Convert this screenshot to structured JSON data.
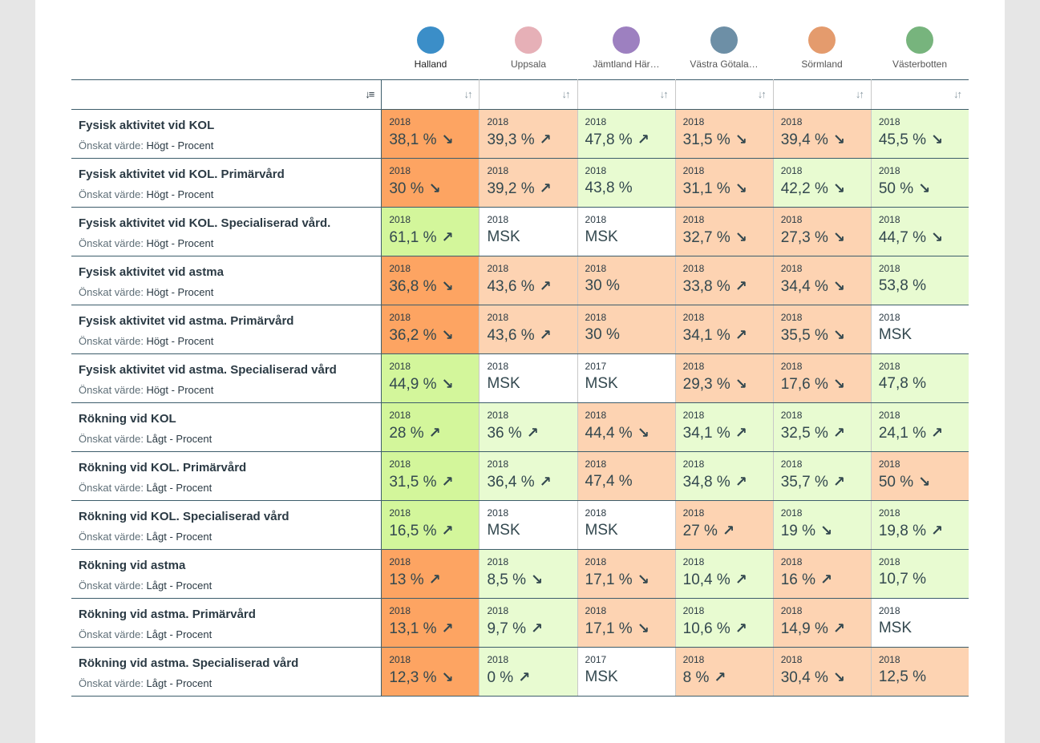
{
  "regions": [
    {
      "name": "Halland",
      "color": "#3b8ec8",
      "active": true
    },
    {
      "name": "Uppsala",
      "color": "#e6b0b7",
      "active": false
    },
    {
      "name": "Jämtland Här…",
      "color": "#9d80c0",
      "active": false
    },
    {
      "name": "Västra Götala…",
      "color": "#6d8fa6",
      "active": false
    },
    {
      "name": "Sörmland",
      "color": "#e49b6d",
      "active": false
    },
    {
      "name": "Västerbotten",
      "color": "#77b47d",
      "active": false
    }
  ],
  "sort_icons": {
    "label": "↓≡",
    "col": "↓↑"
  },
  "desired_label": "Önskat värde:",
  "indicators": [
    {
      "name": "Fysisk aktivitet vid KOL",
      "desired": "Högt - Procent",
      "cells": [
        {
          "year": "2018",
          "value": "38,1 %",
          "arrow": "↘",
          "color": "c-dorange"
        },
        {
          "year": "2018",
          "value": "39,3 %",
          "arrow": "↗",
          "color": "c-lorange"
        },
        {
          "year": "2018",
          "value": "47,8 %",
          "arrow": "↗",
          "color": "c-lgreen"
        },
        {
          "year": "2018",
          "value": "31,5 %",
          "arrow": "↘",
          "color": "c-lorange"
        },
        {
          "year": "2018",
          "value": "39,4 %",
          "arrow": "↘",
          "color": "c-lorange"
        },
        {
          "year": "2018",
          "value": "45,5 %",
          "arrow": "↘",
          "color": "c-lgreen"
        }
      ]
    },
    {
      "name": "Fysisk aktivitet vid KOL. Primärvård",
      "desired": "Högt - Procent",
      "cells": [
        {
          "year": "2018",
          "value": "30 %",
          "arrow": "↘",
          "color": "c-dorange"
        },
        {
          "year": "2018",
          "value": "39,2 %",
          "arrow": "↗",
          "color": "c-lorange"
        },
        {
          "year": "2018",
          "value": "43,8 %",
          "arrow": "",
          "color": "c-lgreen"
        },
        {
          "year": "2018",
          "value": "31,1 %",
          "arrow": "↘",
          "color": "c-lorange"
        },
        {
          "year": "2018",
          "value": "42,2 %",
          "arrow": "↘",
          "color": "c-lgreen"
        },
        {
          "year": "2018",
          "value": "50 %",
          "arrow": "↘",
          "color": "c-lgreen"
        }
      ]
    },
    {
      "name": "Fysisk aktivitet vid KOL. Specialiserad vård.",
      "desired": "Högt - Procent",
      "cells": [
        {
          "year": "2018",
          "value": "61,1 %",
          "arrow": "↗",
          "color": "c-bgreen"
        },
        {
          "year": "2018",
          "value": "MSK",
          "arrow": "",
          "color": "c-white"
        },
        {
          "year": "2018",
          "value": "MSK",
          "arrow": "",
          "color": "c-white"
        },
        {
          "year": "2018",
          "value": "32,7 %",
          "arrow": "↘",
          "color": "c-lorange"
        },
        {
          "year": "2018",
          "value": "27,3 %",
          "arrow": "↘",
          "color": "c-lorange"
        },
        {
          "year": "2018",
          "value": "44,7 %",
          "arrow": "↘",
          "color": "c-lgreen"
        }
      ]
    },
    {
      "name": "Fysisk aktivitet vid astma",
      "desired": "Högt - Procent",
      "cells": [
        {
          "year": "2018",
          "value": "36,8 %",
          "arrow": "↘",
          "color": "c-dorange"
        },
        {
          "year": "2018",
          "value": "43,6 %",
          "arrow": "↗",
          "color": "c-lorange"
        },
        {
          "year": "2018",
          "value": "30 %",
          "arrow": "",
          "color": "c-lorange"
        },
        {
          "year": "2018",
          "value": "33,8 %",
          "arrow": "↗",
          "color": "c-lorange"
        },
        {
          "year": "2018",
          "value": "34,4 %",
          "arrow": "↘",
          "color": "c-lorange"
        },
        {
          "year": "2018",
          "value": "53,8 %",
          "arrow": "",
          "color": "c-lgreen"
        }
      ]
    },
    {
      "name": "Fysisk aktivitet vid astma. Primärvård",
      "desired": "Högt - Procent",
      "cells": [
        {
          "year": "2018",
          "value": "36,2 %",
          "arrow": "↘",
          "color": "c-dorange"
        },
        {
          "year": "2018",
          "value": "43,6 %",
          "arrow": "↗",
          "color": "c-lorange"
        },
        {
          "year": "2018",
          "value": "30 %",
          "arrow": "",
          "color": "c-lorange"
        },
        {
          "year": "2018",
          "value": "34,1 %",
          "arrow": "↗",
          "color": "c-lorange"
        },
        {
          "year": "2018",
          "value": "35,5 %",
          "arrow": "↘",
          "color": "c-lorange"
        },
        {
          "year": "2018",
          "value": "MSK",
          "arrow": "",
          "color": "c-white"
        }
      ]
    },
    {
      "name": "Fysisk aktivitet vid astma. Specialiserad vård",
      "desired": "Högt - Procent",
      "cells": [
        {
          "year": "2018",
          "value": "44,9 %",
          "arrow": "↘",
          "color": "c-bgreen"
        },
        {
          "year": "2018",
          "value": "MSK",
          "arrow": "",
          "color": "c-white"
        },
        {
          "year": "2017",
          "value": "MSK",
          "arrow": "",
          "color": "c-white"
        },
        {
          "year": "2018",
          "value": "29,3 %",
          "arrow": "↘",
          "color": "c-lorange"
        },
        {
          "year": "2018",
          "value": "17,6 %",
          "arrow": "↘",
          "color": "c-lorange"
        },
        {
          "year": "2018",
          "value": "47,8 %",
          "arrow": "",
          "color": "c-lgreen"
        }
      ]
    },
    {
      "name": "Rökning vid KOL",
      "desired": "Lågt - Procent",
      "cells": [
        {
          "year": "2018",
          "value": "28 %",
          "arrow": "↗",
          "color": "c-bgreen"
        },
        {
          "year": "2018",
          "value": "36 %",
          "arrow": "↗",
          "color": "c-lgreen"
        },
        {
          "year": "2018",
          "value": "44,4 %",
          "arrow": "↘",
          "color": "c-lorange"
        },
        {
          "year": "2018",
          "value": "34,1 %",
          "arrow": "↗",
          "color": "c-lgreen"
        },
        {
          "year": "2018",
          "value": "32,5 %",
          "arrow": "↗",
          "color": "c-lgreen"
        },
        {
          "year": "2018",
          "value": "24,1 %",
          "arrow": "↗",
          "color": "c-lgreen"
        }
      ]
    },
    {
      "name": "Rökning vid KOL. Primärvård",
      "desired": "Lågt - Procent",
      "cells": [
        {
          "year": "2018",
          "value": "31,5 %",
          "arrow": "↗",
          "color": "c-bgreen"
        },
        {
          "year": "2018",
          "value": "36,4 %",
          "arrow": "↗",
          "color": "c-lgreen"
        },
        {
          "year": "2018",
          "value": "47,4 %",
          "arrow": "",
          "color": "c-lorange"
        },
        {
          "year": "2018",
          "value": "34,8 %",
          "arrow": "↗",
          "color": "c-lgreen"
        },
        {
          "year": "2018",
          "value": "35,7 %",
          "arrow": "↗",
          "color": "c-lgreen"
        },
        {
          "year": "2018",
          "value": "50 %",
          "arrow": "↘",
          "color": "c-lorange"
        }
      ]
    },
    {
      "name": "Rökning vid KOL. Specialiserad vård",
      "desired": "Lågt - Procent",
      "cells": [
        {
          "year": "2018",
          "value": "16,5 %",
          "arrow": "↗",
          "color": "c-bgreen"
        },
        {
          "year": "2018",
          "value": "MSK",
          "arrow": "",
          "color": "c-white"
        },
        {
          "year": "2018",
          "value": "MSK",
          "arrow": "",
          "color": "c-white"
        },
        {
          "year": "2018",
          "value": "27 %",
          "arrow": "↗",
          "color": "c-lorange"
        },
        {
          "year": "2018",
          "value": "19 %",
          "arrow": "↘",
          "color": "c-lgreen"
        },
        {
          "year": "2018",
          "value": "19,8 %",
          "arrow": "↗",
          "color": "c-lgreen"
        }
      ]
    },
    {
      "name": "Rökning vid astma",
      "desired": "Lågt - Procent",
      "cells": [
        {
          "year": "2018",
          "value": "13 %",
          "arrow": "↗",
          "color": "c-dorange"
        },
        {
          "year": "2018",
          "value": "8,5 %",
          "arrow": "↘",
          "color": "c-lgreen"
        },
        {
          "year": "2018",
          "value": "17,1 %",
          "arrow": "↘",
          "color": "c-lorange"
        },
        {
          "year": "2018",
          "value": "10,4 %",
          "arrow": "↗",
          "color": "c-lgreen"
        },
        {
          "year": "2018",
          "value": "16 %",
          "arrow": "↗",
          "color": "c-lorange"
        },
        {
          "year": "2018",
          "value": "10,7 %",
          "arrow": "",
          "color": "c-lgreen"
        }
      ]
    },
    {
      "name": "Rökning vid astma. Primärvård",
      "desired": "Lågt - Procent",
      "cells": [
        {
          "year": "2018",
          "value": "13,1 %",
          "arrow": "↗",
          "color": "c-dorange"
        },
        {
          "year": "2018",
          "value": "9,7 %",
          "arrow": "↗",
          "color": "c-lgreen"
        },
        {
          "year": "2018",
          "value": "17,1 %",
          "arrow": "↘",
          "color": "c-lorange"
        },
        {
          "year": "2018",
          "value": "10,6 %",
          "arrow": "↗",
          "color": "c-lgreen"
        },
        {
          "year": "2018",
          "value": "14,9 %",
          "arrow": "↗",
          "color": "c-lorange"
        },
        {
          "year": "2018",
          "value": "MSK",
          "arrow": "",
          "color": "c-white"
        }
      ]
    },
    {
      "name": "Rökning vid astma. Specialiserad vård",
      "desired": "Lågt - Procent",
      "cells": [
        {
          "year": "2018",
          "value": "12,3 %",
          "arrow": "↘",
          "color": "c-dorange"
        },
        {
          "year": "2018",
          "value": "0 %",
          "arrow": "↗",
          "color": "c-lgreen"
        },
        {
          "year": "2017",
          "value": "MSK",
          "arrow": "",
          "color": "c-white"
        },
        {
          "year": "2018",
          "value": "8 %",
          "arrow": "↗",
          "color": "c-lorange"
        },
        {
          "year": "2018",
          "value": "30,4 %",
          "arrow": "↘",
          "color": "c-lorange"
        },
        {
          "year": "2018",
          "value": "12,5 %",
          "arrow": "",
          "color": "c-lorange"
        }
      ]
    }
  ]
}
